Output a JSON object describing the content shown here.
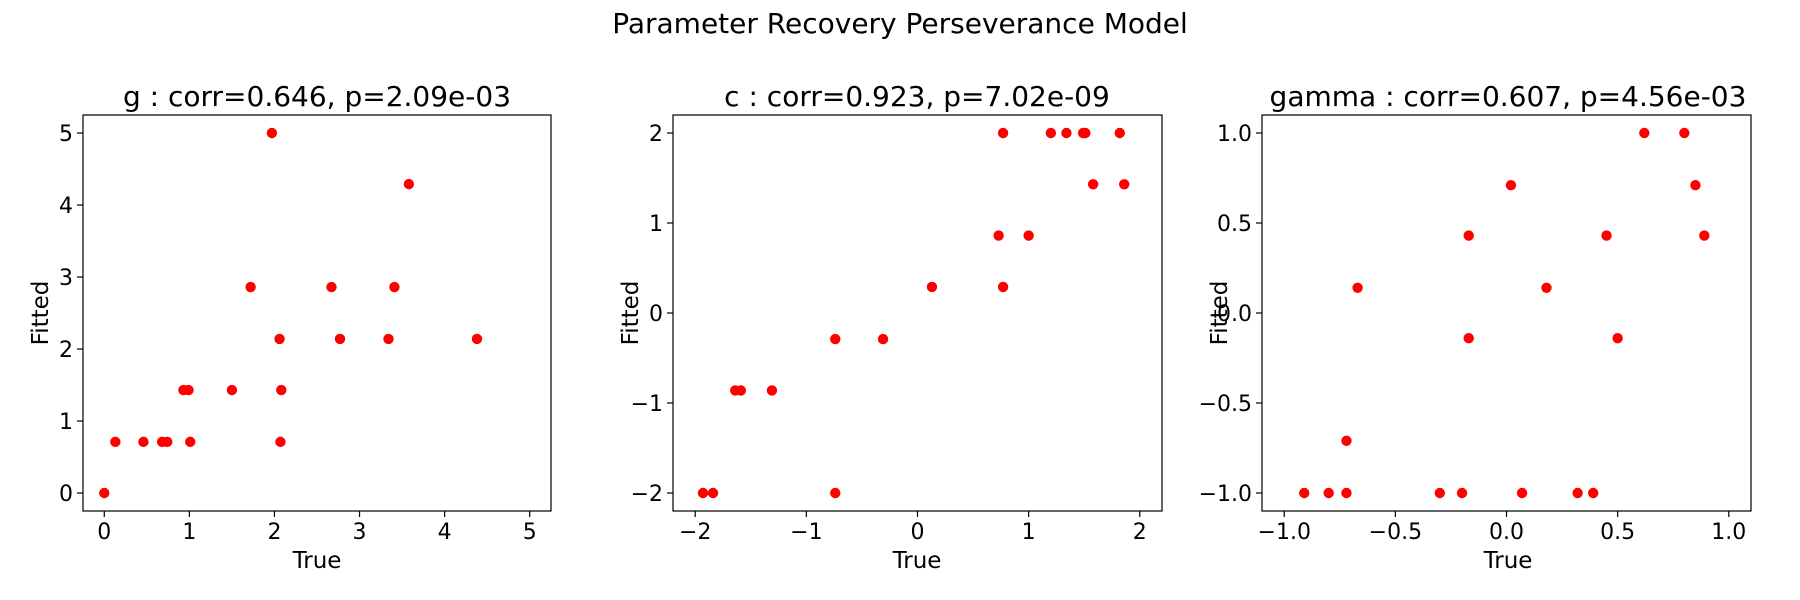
{
  "figure": {
    "title": "Parameter Recovery Perseverance Model",
    "point_color": "#ff0000"
  },
  "chart_data": [
    {
      "type": "scatter",
      "title": "g : corr=0.646, p=2.09e-03",
      "xlabel": "True",
      "ylabel": "Fitted",
      "xlim": [
        -0.25,
        5.25
      ],
      "ylim": [
        -0.25,
        5.25
      ],
      "xticks": [
        0,
        1,
        2,
        3,
        4,
        5
      ],
      "xtick_labels": [
        "0",
        "1",
        "2",
        "3",
        "4",
        "5"
      ],
      "yticks": [
        0,
        1,
        2,
        3,
        4,
        5
      ],
      "ytick_labels": [
        "0",
        "1",
        "2",
        "3",
        "4",
        "5"
      ],
      "grid": false,
      "points": [
        {
          "x": 0.0,
          "y": 0.0
        },
        {
          "x": 0.13,
          "y": 0.71
        },
        {
          "x": 0.46,
          "y": 0.71
        },
        {
          "x": 0.68,
          "y": 0.71
        },
        {
          "x": 0.74,
          "y": 0.71
        },
        {
          "x": 0.93,
          "y": 1.43
        },
        {
          "x": 0.99,
          "y": 1.43
        },
        {
          "x": 1.01,
          "y": 0.71
        },
        {
          "x": 1.5,
          "y": 1.43
        },
        {
          "x": 1.72,
          "y": 2.86
        },
        {
          "x": 1.97,
          "y": 5.0
        },
        {
          "x": 2.06,
          "y": 2.14
        },
        {
          "x": 2.07,
          "y": 0.71
        },
        {
          "x": 2.08,
          "y": 1.43
        },
        {
          "x": 2.67,
          "y": 2.86
        },
        {
          "x": 2.77,
          "y": 2.14
        },
        {
          "x": 3.34,
          "y": 2.14
        },
        {
          "x": 3.41,
          "y": 2.86
        },
        {
          "x": 3.58,
          "y": 4.29
        },
        {
          "x": 4.38,
          "y": 2.14
        }
      ]
    },
    {
      "type": "scatter",
      "title": "c : corr=0.923, p=7.02e-09",
      "xlabel": "True",
      "ylabel": "Fitted",
      "xlim": [
        -2.2,
        2.2
      ],
      "ylim": [
        -2.2,
        2.2
      ],
      "xticks": [
        -2,
        -1,
        0,
        1,
        2
      ],
      "xtick_labels": [
        "−2",
        "−1",
        "0",
        "1",
        "2"
      ],
      "yticks": [
        -2,
        -1,
        0,
        1,
        2
      ],
      "ytick_labels": [
        "−2",
        "−1",
        "0",
        "1",
        "2"
      ],
      "grid": false,
      "points": [
        {
          "x": -1.93,
          "y": -2.0
        },
        {
          "x": -1.84,
          "y": -2.0
        },
        {
          "x": -1.64,
          "y": -0.86
        },
        {
          "x": -1.59,
          "y": -0.86
        },
        {
          "x": -1.31,
          "y": -0.86
        },
        {
          "x": -0.74,
          "y": -2.0
        },
        {
          "x": -0.74,
          "y": -0.29
        },
        {
          "x": -0.31,
          "y": -0.29
        },
        {
          "x": 0.13,
          "y": 0.29
        },
        {
          "x": 0.73,
          "y": 0.86
        },
        {
          "x": 0.77,
          "y": 2.0
        },
        {
          "x": 0.77,
          "y": 0.29
        },
        {
          "x": 1.0,
          "y": 0.86
        },
        {
          "x": 1.2,
          "y": 2.0
        },
        {
          "x": 1.34,
          "y": 2.0
        },
        {
          "x": 1.49,
          "y": 2.0
        },
        {
          "x": 1.51,
          "y": 2.0
        },
        {
          "x": 1.58,
          "y": 1.43
        },
        {
          "x": 1.82,
          "y": 2.0
        },
        {
          "x": 1.86,
          "y": 1.43
        }
      ]
    },
    {
      "type": "scatter",
      "title": "gamma : corr=0.607, p=4.56e-03",
      "xlabel": "True",
      "ylabel": "Fitted",
      "xlim": [
        -1.1,
        1.1
      ],
      "ylim": [
        -1.1,
        1.1
      ],
      "xticks": [
        -1.0,
        -0.5,
        0.0,
        0.5,
        1.0
      ],
      "xtick_labels": [
        "−1.0",
        "−0.5",
        "0.0",
        "0.5",
        "1.0"
      ],
      "yticks": [
        -1.0,
        -0.5,
        0.0,
        0.5,
        1.0
      ],
      "ytick_labels": [
        "−1.0",
        "−0.5",
        "0.0",
        "0.5",
        "1.0"
      ],
      "grid": false,
      "points": [
        {
          "x": -0.91,
          "y": -1.0
        },
        {
          "x": -0.8,
          "y": -1.0
        },
        {
          "x": -0.72,
          "y": -1.0
        },
        {
          "x": -0.72,
          "y": -0.71
        },
        {
          "x": -0.67,
          "y": 0.14
        },
        {
          "x": -0.3,
          "y": -1.0
        },
        {
          "x": -0.2,
          "y": -1.0
        },
        {
          "x": -0.17,
          "y": 0.43
        },
        {
          "x": -0.17,
          "y": -0.14
        },
        {
          "x": 0.02,
          "y": 0.71
        },
        {
          "x": 0.07,
          "y": -1.0
        },
        {
          "x": 0.18,
          "y": 0.14
        },
        {
          "x": 0.32,
          "y": -1.0
        },
        {
          "x": 0.39,
          "y": -1.0
        },
        {
          "x": 0.45,
          "y": 0.43
        },
        {
          "x": 0.5,
          "y": -0.14
        },
        {
          "x": 0.62,
          "y": 1.0
        },
        {
          "x": 0.8,
          "y": 1.0
        },
        {
          "x": 0.85,
          "y": 0.71
        },
        {
          "x": 0.89,
          "y": 0.43
        }
      ]
    }
  ]
}
